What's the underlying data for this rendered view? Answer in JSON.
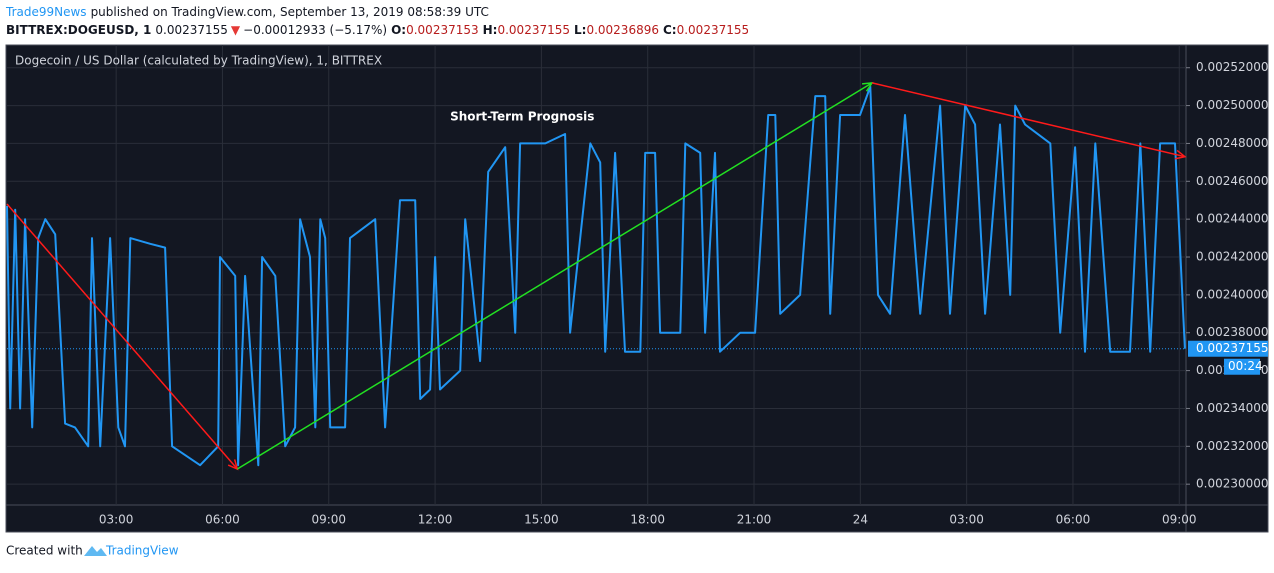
{
  "header": {
    "author": "Trade99News",
    "published": "published on TradingView.com, September 13, 2019 08:58:39 UTC",
    "symbol": "BITTREX:DOGEUSD, 1",
    "price": "0.00237155",
    "direction": "▼",
    "change": "−0.00012933 (−5.17%)",
    "open_label": "O:",
    "open": "0.00237153",
    "high_label": "H:",
    "high": "0.00237155",
    "low_label": "L:",
    "low": "0.00236896",
    "close_label": "C:",
    "close": "0.00237155"
  },
  "footer": {
    "created": "Created with",
    "brand": "TradingView"
  },
  "chart_data": {
    "type": "line",
    "title": "Dogecoin / US Dollar (calculated by TradingView), 1, BITTREX",
    "color": "#2196f3",
    "x": [
      -0.08,
      0.01,
      0.15,
      0.29,
      0.43,
      0.63,
      0.8,
      1.0,
      1.28,
      1.56,
      1.84,
      2.21,
      2.32,
      2.55,
      2.83,
      3.06,
      3.25,
      3.4,
      3.96,
      4.38,
      4.58,
      5.37,
      5.88,
      5.93,
      6.36,
      6.44,
      6.64,
      7.01,
      7.12,
      7.49,
      7.77,
      8.05,
      8.19,
      8.47,
      8.62,
      8.76,
      8.9,
      9.04,
      9.46,
      9.6,
      10.31,
      10.59,
      11.01,
      11.44,
      11.58,
      11.86,
      12.0,
      12.14,
      12.71,
      12.85,
      13.27,
      13.5,
      13.98,
      14.26,
      14.4,
      15.11,
      15.67,
      15.81,
      16.38,
      16.66,
      16.8,
      17.08,
      17.36,
      17.79,
      17.93,
      18.21,
      18.35,
      18.92,
      19.06,
      19.48,
      19.62,
      19.9,
      20.04,
      20.61,
      21.03,
      21.4,
      21.6,
      21.74,
      22.3,
      22.73,
      23.01,
      23.15,
      23.43,
      23.99,
      24.28,
      24.5,
      24.84,
      25.26,
      25.69,
      26.25,
      26.53,
      26.96,
      27.24,
      27.52,
      27.94,
      28.23,
      28.37,
      28.65,
      29.36,
      29.64,
      30.06,
      30.34,
      30.63,
      31.05,
      31.61,
      31.9,
      32.18,
      32.46,
      32.88,
      33.16
    ],
    "values": [
      0.002447,
      0.00234,
      0.002445,
      0.00234,
      0.00244,
      0.00233,
      0.00243,
      0.00244,
      0.002432,
      0.002332,
      0.00233,
      0.00232,
      0.00243,
      0.00232,
      0.00243,
      0.00233,
      0.00232,
      0.00243,
      0.002427,
      0.002425,
      0.00232,
      0.00231,
      0.00232,
      0.00242,
      0.00241,
      0.00231,
      0.00241,
      0.00231,
      0.00242,
      0.00241,
      0.00232,
      0.00233,
      0.00244,
      0.00242,
      0.00233,
      0.00244,
      0.00243,
      0.00233,
      0.00233,
      0.00243,
      0.00244,
      0.00233,
      0.00245,
      0.00245,
      0.002345,
      0.00235,
      0.00242,
      0.00235,
      0.00236,
      0.00244,
      0.002365,
      0.002465,
      0.002478,
      0.00238,
      0.00248,
      0.00248,
      0.002485,
      0.00238,
      0.00248,
      0.00247,
      0.00237,
      0.002475,
      0.00237,
      0.00237,
      0.002475,
      0.002475,
      0.00238,
      0.00238,
      0.00248,
      0.002475,
      0.00238,
      0.002475,
      0.00237,
      0.00238,
      0.00238,
      0.002495,
      0.002495,
      0.00239,
      0.0024,
      0.002505,
      0.002505,
      0.00239,
      0.002495,
      0.002495,
      0.00251,
      0.0024,
      0.00239,
      0.002495,
      0.00239,
      0.0025,
      0.00239,
      0.0025,
      0.00249,
      0.00239,
      0.00249,
      0.0024,
      0.0025,
      0.00249,
      0.00248,
      0.00238,
      0.002478,
      0.00237,
      0.00248,
      0.00237,
      0.00237,
      0.00248,
      0.00237,
      0.00248,
      0.00248,
      0.00237155
    ],
    "xlim": [
      -0.08,
      33.19
    ],
    "xticks": [
      {
        "value": 3,
        "label": "03:00"
      },
      {
        "value": 6,
        "label": "06:00"
      },
      {
        "value": 9,
        "label": "09:00"
      },
      {
        "value": 12,
        "label": "12:00"
      },
      {
        "value": 15,
        "label": "15:00"
      },
      {
        "value": 18,
        "label": "18:00"
      },
      {
        "value": 21,
        "label": "21:00"
      },
      24,
      {
        "value": 27,
        "label": "03:00"
      },
      {
        "value": 30,
        "label": "06:00"
      },
      {
        "value": 33,
        "label": "09:00"
      }
    ],
    "ylim": [
      0.002289,
      0.002532
    ],
    "yticks": [
      {
        "value": 0.0023,
        "label": "0.00230000"
      },
      {
        "value": 0.00232,
        "label": "0.00232000"
      },
      {
        "value": 0.00234,
        "label": "0.00234000"
      },
      {
        "value": 0.00236,
        "label": "0.00236000"
      },
      {
        "value": 0.00238,
        "label": "0.00238000"
      },
      {
        "value": 0.0024,
        "label": "0.00240000"
      },
      {
        "value": 0.00242,
        "label": "0.00242000"
      },
      {
        "value": 0.00244,
        "label": "0.00244000"
      },
      {
        "value": 0.00246,
        "label": "0.00246000"
      },
      {
        "value": 0.00248,
        "label": "0.00248000"
      },
      {
        "value": 0.0025,
        "label": "0.00250000"
      },
      {
        "value": 0.00252,
        "label": "0.00252000"
      }
    ],
    "grid": true,
    "last_price": {
      "value": 0.00237155,
      "label": "0.00237155",
      "countdown": "00:24"
    },
    "annotation": {
      "text": "Short-Term Prognosis",
      "x": 14.46,
      "y": 0.002494
    },
    "arrows": [
      {
        "color": "#ff1a1a",
        "x": [
          -0.08,
          6.42
        ],
        "values": [
          0.002448,
          0.002308
        ]
      },
      {
        "color": "#22e022",
        "x": [
          6.42,
          24.33
        ],
        "values": [
          0.002308,
          0.002512
        ]
      },
      {
        "color": "#ff1a1a",
        "x": [
          24.33,
          33.16
        ],
        "values": [
          0.002512,
          0.002473
        ]
      }
    ]
  }
}
